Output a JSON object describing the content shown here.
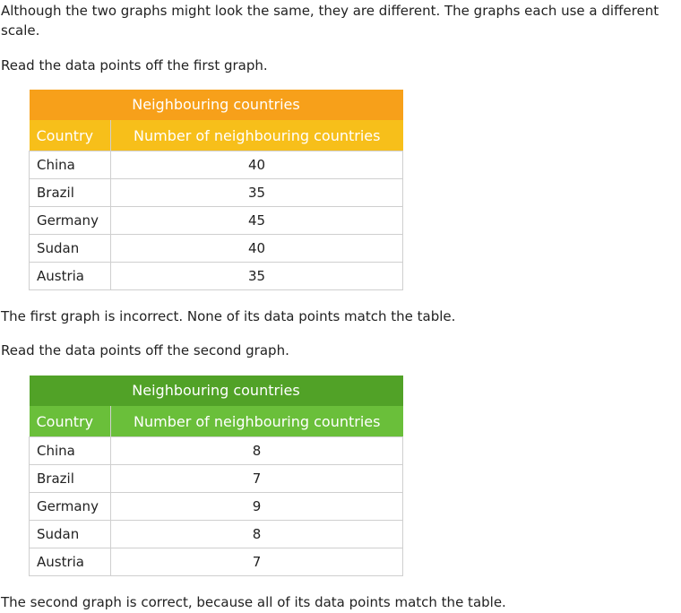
{
  "paragraphs": {
    "intro": "Although the two graphs might look the same, they are different. The graphs each use a different scale.",
    "read_first": "Read the data points off the first graph.",
    "first_result": "The first graph is incorrect. None of its data points match the table.",
    "read_second": "Read the data points off the second graph.",
    "second_result": "The second graph is correct, because all of its data points match the table."
  },
  "table1": {
    "title": "Neighbouring countries",
    "headers": [
      "Country",
      "Number of neighbouring countries"
    ],
    "rows": [
      {
        "country": "China",
        "value": "40"
      },
      {
        "country": "Brazil",
        "value": "35"
      },
      {
        "country": "Germany",
        "value": "45"
      },
      {
        "country": "Sudan",
        "value": "40"
      },
      {
        "country": "Austria",
        "value": "35"
      }
    ],
    "title_color": "#f7a01a",
    "header_color": "#f7bf1a"
  },
  "table2": {
    "title": "Neighbouring countries",
    "headers": [
      "Country",
      "Number of neighbouring countries"
    ],
    "rows": [
      {
        "country": "China",
        "value": "8"
      },
      {
        "country": "Brazil",
        "value": "7"
      },
      {
        "country": "Germany",
        "value": "9"
      },
      {
        "country": "Sudan",
        "value": "8"
      },
      {
        "country": "Austria",
        "value": "7"
      }
    ],
    "title_color": "#51a227",
    "header_color": "#6abf3a"
  }
}
